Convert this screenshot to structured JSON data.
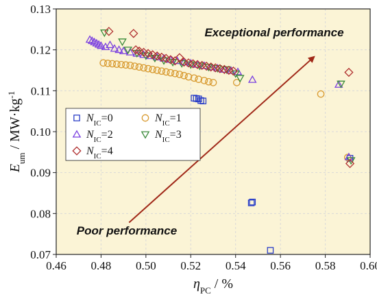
{
  "chart_data": {
    "type": "scatter",
    "xlabel": {
      "main": "η",
      "sub": "PC",
      "rest": " / %"
    },
    "ylabel": {
      "main": "E",
      "sub": "um",
      "rest": " / MW·kg",
      "sup": "-1"
    },
    "xlim": [
      0.46,
      0.6
    ],
    "ylim": [
      0.07,
      0.13
    ],
    "xticks": [
      "0.46",
      "0.48",
      "0.50",
      "0.52",
      "0.54",
      "0.56",
      "0.58",
      "0.60"
    ],
    "yticks": [
      "0.07",
      "0.08",
      "0.09",
      "0.10",
      "0.11",
      "0.12",
      "0.13"
    ],
    "background": "#fbf4d6",
    "grid": true,
    "legend_position": "middle-left",
    "annotations": {
      "top": "Exceptional performance",
      "bottom": "Poor performance",
      "arrow_color": "#a02818",
      "arrow_from": [
        0.4925,
        0.0778
      ],
      "arrow_to": [
        0.575,
        0.1183
      ]
    },
    "series": [
      {
        "name": {
          "main": "N",
          "sub": "IC",
          "rest": "=0"
        },
        "marker": "square",
        "color": "#2b3fc8",
        "points": [
          [
            0.5215,
            0.1082
          ],
          [
            0.5225,
            0.1081
          ],
          [
            0.5235,
            0.108
          ],
          [
            0.5245,
            0.1076
          ],
          [
            0.5255,
            0.1075
          ],
          [
            0.547,
            0.0826
          ],
          [
            0.5475,
            0.0828
          ],
          [
            0.5555,
            0.071
          ],
          [
            0.591,
            0.0935
          ]
        ]
      },
      {
        "name": {
          "main": "N",
          "sub": "IC",
          "rest": "=1"
        },
        "marker": "circle",
        "color": "#d89a30",
        "points": [
          [
            0.481,
            0.1168
          ],
          [
            0.483,
            0.1167
          ],
          [
            0.485,
            0.1166
          ],
          [
            0.487,
            0.1165
          ],
          [
            0.489,
            0.1164
          ],
          [
            0.491,
            0.1163
          ],
          [
            0.493,
            0.1162
          ],
          [
            0.495,
            0.116
          ],
          [
            0.497,
            0.1158
          ],
          [
            0.499,
            0.1156
          ],
          [
            0.501,
            0.1154
          ],
          [
            0.503,
            0.1152
          ],
          [
            0.505,
            0.115
          ],
          [
            0.507,
            0.1148
          ],
          [
            0.509,
            0.1146
          ],
          [
            0.511,
            0.1144
          ],
          [
            0.513,
            0.1142
          ],
          [
            0.515,
            0.114
          ],
          [
            0.517,
            0.1137
          ],
          [
            0.519,
            0.1134
          ],
          [
            0.5215,
            0.1131
          ],
          [
            0.5235,
            0.1128
          ],
          [
            0.526,
            0.1125
          ],
          [
            0.528,
            0.1122
          ],
          [
            0.53,
            0.112
          ],
          [
            0.5405,
            0.112
          ],
          [
            0.578,
            0.1092
          ],
          [
            0.59,
            0.0937
          ]
        ]
      },
      {
        "name": {
          "main": "N",
          "sub": "IC",
          "rest": "=2"
        },
        "marker": "triangle-up",
        "color": "#7a3fe0",
        "points": [
          [
            0.475,
            0.1225
          ],
          [
            0.476,
            0.1222
          ],
          [
            0.477,
            0.1219
          ],
          [
            0.478,
            0.1216
          ],
          [
            0.479,
            0.1213
          ],
          [
            0.48,
            0.121
          ],
          [
            0.482,
            0.1207
          ],
          [
            0.484,
            0.1212
          ],
          [
            0.486,
            0.1203
          ],
          [
            0.488,
            0.12
          ],
          [
            0.49,
            0.1197
          ],
          [
            0.493,
            0.1194
          ],
          [
            0.496,
            0.1191
          ],
          [
            0.499,
            0.1188
          ],
          [
            0.502,
            0.1185
          ],
          [
            0.505,
            0.1182
          ],
          [
            0.508,
            0.1179
          ],
          [
            0.511,
            0.1176
          ],
          [
            0.514,
            0.1173
          ],
          [
            0.517,
            0.117
          ],
          [
            0.52,
            0.1167
          ],
          [
            0.523,
            0.1164
          ],
          [
            0.526,
            0.1161
          ],
          [
            0.529,
            0.1158
          ],
          [
            0.532,
            0.1155
          ],
          [
            0.535,
            0.1152
          ],
          [
            0.538,
            0.1149
          ],
          [
            0.541,
            0.1146
          ],
          [
            0.5475,
            0.1127
          ],
          [
            0.586,
            0.1115
          ],
          [
            0.5905,
            0.0938
          ]
        ]
      },
      {
        "name": {
          "main": "N",
          "sub": "IC",
          "rest": "=3"
        },
        "marker": "triangle-down",
        "color": "#3a8a3a",
        "points": [
          [
            0.4815,
            0.1242
          ],
          [
            0.4895,
            0.122
          ],
          [
            0.492,
            0.12
          ],
          [
            0.496,
            0.1192
          ],
          [
            0.5,
            0.1186
          ],
          [
            0.504,
            0.118
          ],
          [
            0.508,
            0.1174
          ],
          [
            0.512,
            0.117
          ],
          [
            0.516,
            0.1167
          ],
          [
            0.52,
            0.1164
          ],
          [
            0.524,
            0.1161
          ],
          [
            0.528,
            0.1158
          ],
          [
            0.532,
            0.1155
          ],
          [
            0.536,
            0.1152
          ],
          [
            0.54,
            0.1142
          ],
          [
            0.542,
            0.1131
          ],
          [
            0.587,
            0.1117
          ],
          [
            0.5915,
            0.093
          ]
        ]
      },
      {
        "name": {
          "main": "N",
          "sub": "IC",
          "rest": "=4"
        },
        "marker": "diamond",
        "color": "#b03030",
        "points": [
          [
            0.4835,
            0.1245
          ],
          [
            0.4945,
            0.124
          ],
          [
            0.4955,
            0.12
          ],
          [
            0.497,
            0.1197
          ],
          [
            0.499,
            0.1194
          ],
          [
            0.501,
            0.1191
          ],
          [
            0.503,
            0.1188
          ],
          [
            0.505,
            0.1185
          ],
          [
            0.507,
            0.1182
          ],
          [
            0.509,
            0.1179
          ],
          [
            0.511,
            0.1176
          ],
          [
            0.513,
            0.1173
          ],
          [
            0.515,
            0.1181
          ],
          [
            0.517,
            0.117
          ],
          [
            0.519,
            0.1168
          ],
          [
            0.521,
            0.1166
          ],
          [
            0.523,
            0.1164
          ],
          [
            0.525,
            0.1162
          ],
          [
            0.527,
            0.116
          ],
          [
            0.529,
            0.1158
          ],
          [
            0.531,
            0.1156
          ],
          [
            0.533,
            0.1154
          ],
          [
            0.535,
            0.1152
          ],
          [
            0.537,
            0.115
          ],
          [
            0.539,
            0.1148
          ],
          [
            0.5905,
            0.1145
          ],
          [
            0.591,
            0.0922
          ]
        ]
      }
    ]
  }
}
